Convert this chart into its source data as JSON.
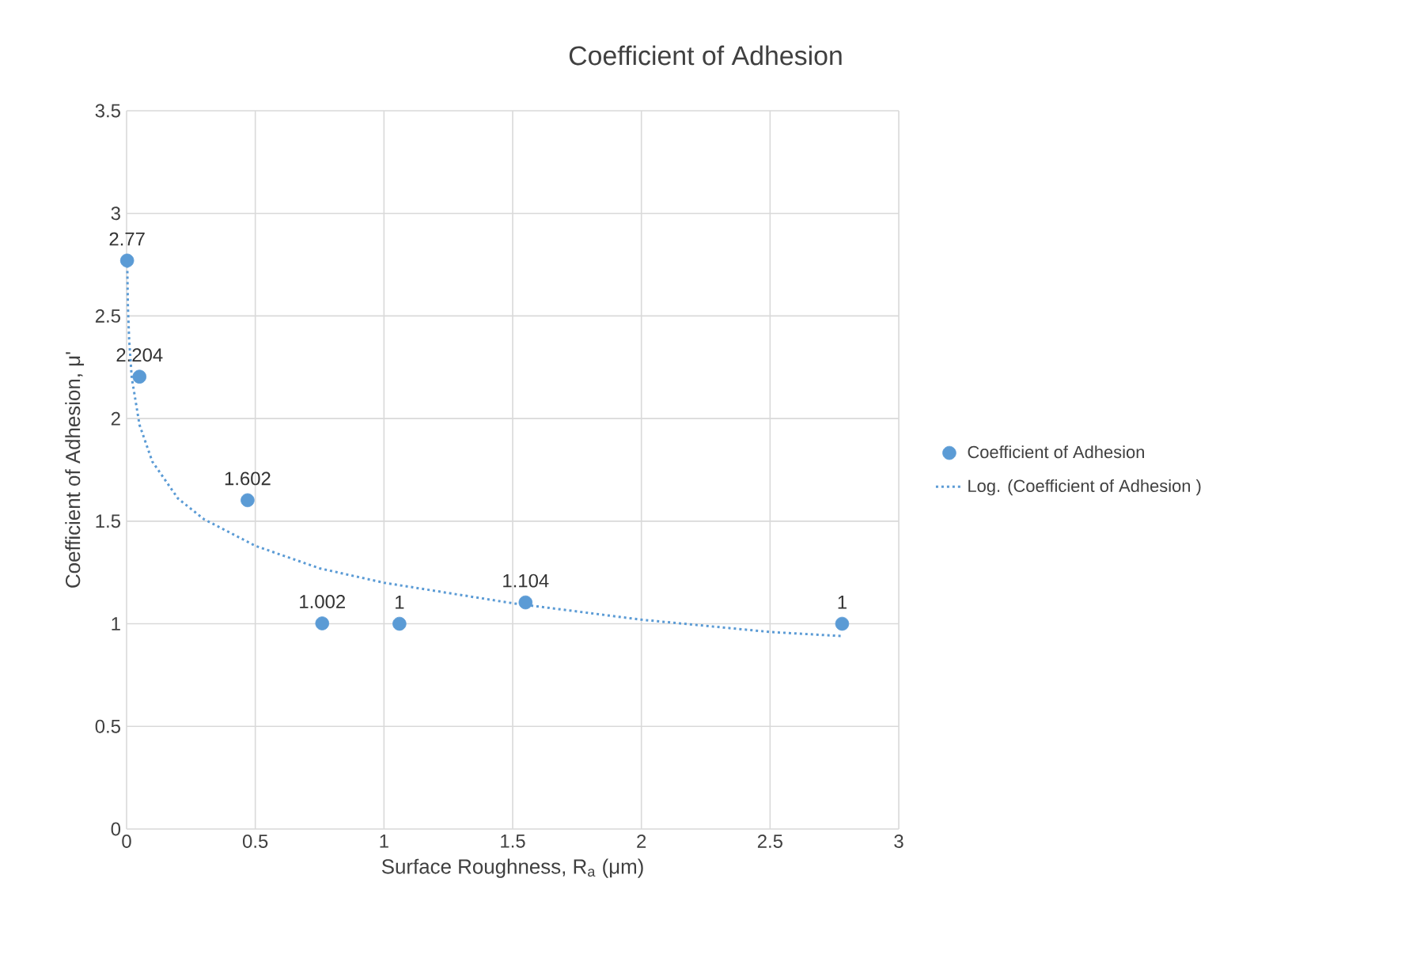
{
  "chart_data": {
    "type": "scatter",
    "title": "Coefficient of Adhesion",
    "xlabel": "Surface Roughness, R$_{a}$ (μm)",
    "ylabel": "Coefficient of Adhesion, μ'",
    "series": [
      {
        "name": "Coefficient of Adhesion",
        "color": "#5b9bd5",
        "marker": "circle",
        "x": [
          0.002,
          0.05,
          0.47,
          0.76,
          1.06,
          1.55,
          2.78
        ],
        "values": [
          2.77,
          2.204,
          1.602,
          1.002,
          1,
          1.104,
          1
        ],
        "value_labels": [
          "2.77",
          "2.204",
          "1.602",
          "1.002",
          "1",
          "1.104",
          "1"
        ]
      },
      {
        "name": "Log. (Coefficient of Adhesion )",
        "type": "line",
        "color": "#5b9bd5",
        "line_style": "dotted",
        "marker": "none",
        "x": [
          0.002,
          0.005,
          0.01,
          0.02,
          0.05,
          0.1,
          0.2,
          0.3,
          0.5,
          0.75,
          1,
          1.5,
          2,
          2.5,
          2.78
        ],
        "values": [
          2.8,
          2.55,
          2.38,
          2.2,
          1.97,
          1.79,
          1.61,
          1.51,
          1.38,
          1.27,
          1.2,
          1.1,
          1.02,
          0.96,
          0.94
        ]
      }
    ],
    "xlim": [
      0,
      3
    ],
    "xticks": [
      0,
      0.5,
      1,
      1.5,
      2,
      2.5,
      3
    ],
    "ylim": [
      0,
      3.5
    ],
    "yticks": [
      0,
      0.5,
      1,
      1.5,
      2,
      2.5,
      3,
      3.5
    ],
    "grid": true,
    "legend": "right"
  }
}
